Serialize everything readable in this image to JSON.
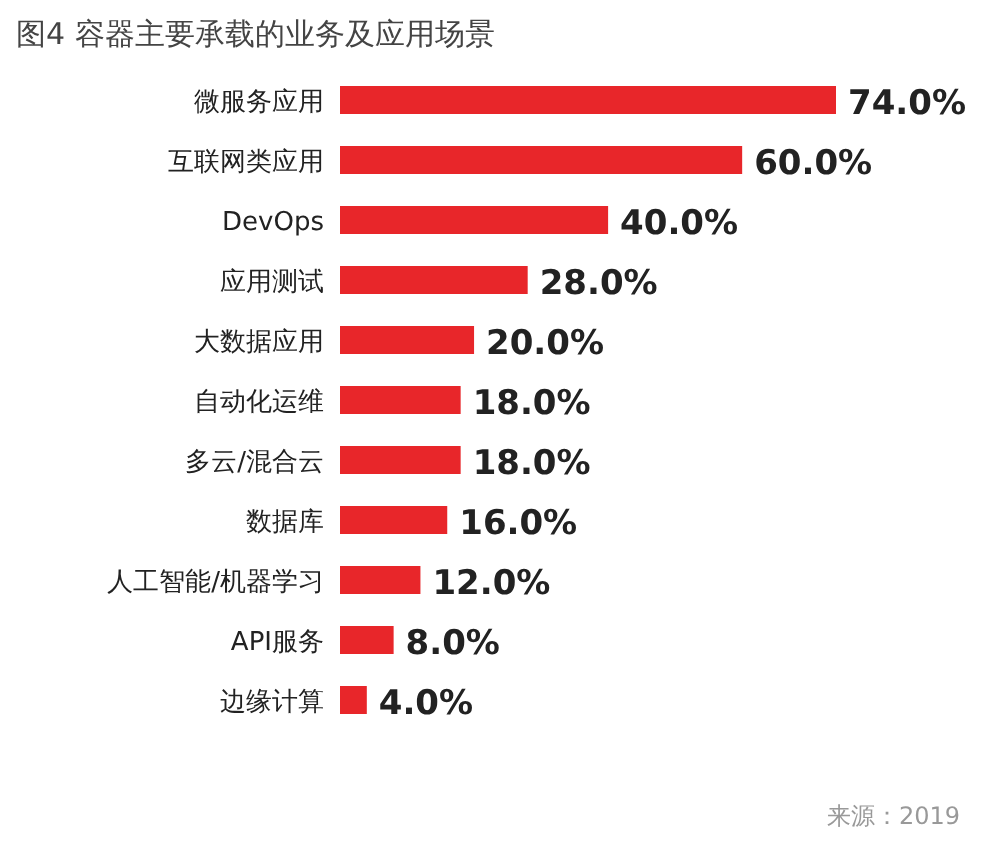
{
  "chart_data": {
    "type": "bar",
    "orientation": "horizontal",
    "title": "图4 容器主要承载的业务及应用场景",
    "categories": [
      "微服务应用",
      "互联网类应用",
      "DevOps",
      "应用测试",
      "大数据应用",
      "自动化运维",
      "多云/混合云",
      "数据库",
      "人工智能/机器学习",
      "API服务",
      "边缘计算"
    ],
    "values": [
      74.0,
      60.0,
      40.0,
      28.0,
      20.0,
      18.0,
      18.0,
      16.0,
      12.0,
      8.0,
      4.0
    ],
    "color": "#e8262a",
    "value_labels": [
      "74.0%",
      "60.0%",
      "40.0%",
      "28.0%",
      "20.0%",
      "18.0%",
      "18.0%",
      "16.0%",
      "12.0%",
      "8.0%",
      "4.0%"
    ],
    "annotations": [
      "来源：2019"
    ]
  }
}
